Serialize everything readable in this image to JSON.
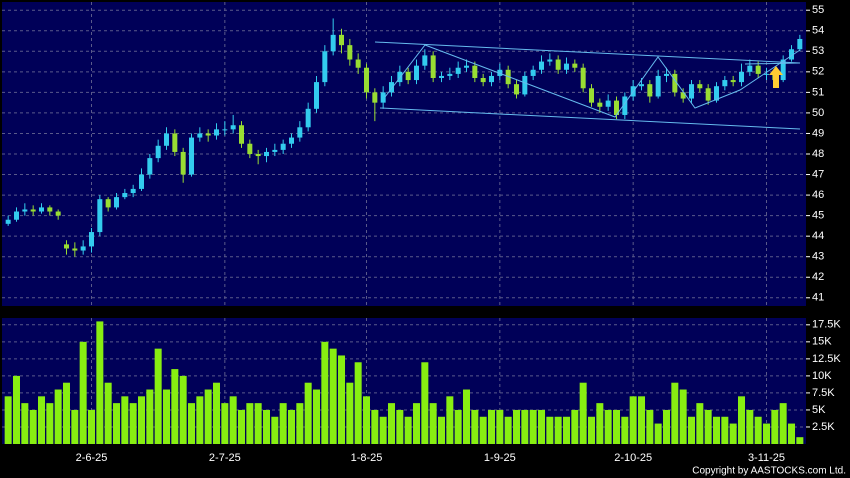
{
  "chart_data": [
    {
      "type": "candlestick",
      "categories": [
        null,
        null,
        null,
        null,
        null,
        null,
        null,
        null,
        null,
        null,
        "2-6-25",
        null,
        null,
        null,
        null,
        null,
        null,
        null,
        null,
        null,
        null,
        null,
        null,
        null,
        null,
        null,
        "2-7-25",
        null,
        null,
        null,
        null,
        null,
        null,
        null,
        null,
        null,
        null,
        null,
        null,
        null,
        null,
        null,
        null,
        "1-8-25",
        null,
        null,
        null,
        null,
        null,
        null,
        null,
        null,
        null,
        null,
        null,
        null,
        null,
        null,
        null,
        "1-9-25",
        null,
        null,
        null,
        null,
        null,
        null,
        null,
        null,
        null,
        null,
        null,
        null,
        null,
        null,
        null,
        "2-10-25",
        null,
        null,
        null,
        null,
        null,
        null,
        null,
        null,
        null,
        null,
        null,
        null,
        null,
        null,
        null,
        "3-11-25",
        null,
        null,
        null,
        null
      ],
      "open": [
        44.6,
        44.8,
        45.2,
        45.3,
        45.2,
        45.4,
        45.2,
        43.6,
        43.4,
        43.3,
        43.5,
        44.2,
        45.8,
        45.4,
        45.9,
        46.1,
        46.3,
        47.0,
        47.8,
        48.4,
        49.0,
        48.1,
        47.0,
        48.8,
        49.0,
        48.9,
        49.2,
        49.2,
        49.4,
        48.5,
        48.0,
        47.9,
        48.1,
        48.2,
        48.5,
        48.8,
        49.3,
        50.2,
        51.5,
        53.0,
        53.8,
        53.3,
        52.6,
        52.2,
        51.0,
        50.5,
        51.0,
        51.5,
        52.0,
        51.6,
        52.3,
        52.8,
        51.7,
        51.8,
        51.9,
        52.2,
        52.3,
        51.7,
        51.5,
        51.8,
        52.1,
        51.4,
        50.9,
        51.8,
        52.1,
        52.5,
        52.6,
        52.1,
        52.4,
        52.2,
        51.2,
        50.5,
        50.3,
        50.6,
        49.9,
        50.8,
        51.3,
        51.4,
        50.8,
        51.8,
        51.9,
        51.0,
        50.7,
        51.4,
        51.2,
        50.6,
        51.3,
        51.6,
        51.5,
        52.0,
        52.3,
        51.9,
        51.9,
        51.6,
        52.6,
        53.1
      ],
      "high": [
        45.0,
        45.4,
        45.6,
        45.5,
        45.6,
        45.5,
        45.3,
        43.8,
        43.7,
        43.8,
        44.4,
        46.0,
        45.9,
        46.1,
        46.3,
        46.5,
        47.3,
        48.0,
        48.7,
        49.3,
        49.2,
        48.3,
        49.0,
        49.3,
        49.2,
        49.5,
        49.6,
        49.9,
        49.6,
        48.7,
        48.2,
        48.3,
        48.5,
        48.7,
        49.0,
        49.6,
        50.5,
        51.8,
        53.3,
        54.6,
        54.1,
        53.6,
        52.9,
        52.4,
        51.2,
        51.3,
        51.8,
        52.3,
        52.2,
        52.6,
        53.1,
        53.0,
        52.0,
        52.2,
        52.5,
        52.6,
        52.5,
        51.9,
        52.0,
        52.4,
        52.3,
        51.6,
        52.0,
        52.3,
        52.8,
        52.9,
        52.8,
        52.7,
        52.6,
        52.4,
        51.4,
        50.7,
        50.9,
        50.8,
        51.0,
        51.6,
        51.7,
        51.6,
        52.1,
        52.2,
        52.1,
        51.2,
        51.6,
        51.6,
        51.4,
        51.5,
        51.8,
        51.8,
        52.4,
        52.6,
        52.5,
        52.2,
        52.1,
        52.8,
        53.3,
        53.8
      ],
      "low": [
        44.5,
        44.7,
        45.0,
        45.0,
        45.1,
        45.0,
        44.8,
        43.1,
        43.0,
        43.1,
        43.2,
        44.0,
        45.2,
        45.3,
        45.8,
        45.9,
        46.2,
        46.8,
        47.6,
        48.2,
        47.9,
        46.6,
        46.9,
        48.6,
        48.6,
        48.7,
        48.9,
        49.0,
        48.3,
        47.8,
        47.5,
        47.6,
        47.9,
        48.0,
        48.3,
        48.6,
        49.1,
        50.0,
        51.3,
        52.8,
        52.9,
        52.3,
        51.9,
        50.7,
        49.6,
        50.2,
        50.8,
        51.3,
        51.4,
        51.4,
        52.1,
        51.5,
        51.5,
        51.6,
        51.7,
        52.0,
        51.5,
        51.3,
        51.3,
        51.6,
        51.2,
        50.7,
        50.8,
        51.6,
        51.9,
        52.3,
        51.9,
        51.9,
        52.0,
        51.0,
        50.3,
        50.0,
        50.1,
        49.7,
        49.7,
        50.6,
        51.1,
        50.5,
        50.7,
        51.5,
        50.8,
        50.5,
        50.5,
        51.0,
        50.4,
        50.5,
        51.1,
        51.3,
        51.3,
        51.8,
        51.7,
        51.6,
        51.4,
        51.5,
        52.5,
        53.0
      ],
      "close": [
        44.8,
        45.2,
        45.3,
        45.2,
        45.4,
        45.2,
        45.0,
        43.4,
        43.3,
        43.5,
        44.2,
        45.8,
        45.4,
        45.9,
        46.1,
        46.3,
        47.0,
        47.8,
        48.4,
        49.0,
        48.1,
        47.0,
        48.8,
        49.0,
        48.9,
        49.2,
        49.2,
        49.4,
        48.5,
        48.0,
        47.9,
        48.1,
        48.2,
        48.5,
        48.8,
        49.3,
        50.2,
        51.5,
        53.0,
        53.8,
        53.3,
        52.6,
        52.2,
        51.0,
        50.5,
        51.0,
        51.5,
        52.0,
        51.6,
        52.3,
        52.8,
        51.7,
        51.8,
        51.9,
        52.2,
        52.3,
        51.7,
        51.5,
        51.8,
        52.1,
        51.4,
        50.9,
        51.8,
        52.1,
        52.5,
        52.6,
        52.1,
        52.4,
        52.2,
        51.2,
        50.5,
        50.3,
        50.6,
        49.9,
        50.8,
        51.3,
        51.4,
        50.8,
        51.8,
        51.9,
        51.0,
        50.7,
        51.4,
        51.2,
        50.6,
        51.3,
        51.6,
        51.5,
        52.0,
        52.3,
        51.9,
        51.9,
        51.6,
        52.6,
        53.1,
        53.6
      ],
      "up_color": "#33ccee",
      "down_color": "#99dd33",
      "ylim": [
        40.6,
        55.4
      ],
      "yticks": [
        41,
        42,
        43,
        44,
        45,
        46,
        47,
        48,
        49,
        50,
        51,
        52,
        53,
        54,
        55
      ],
      "grid": true
    },
    {
      "type": "bar",
      "values": [
        7000,
        10000,
        6000,
        5000,
        7000,
        6000,
        8000,
        9000,
        5000,
        15000,
        5000,
        18000,
        9000,
        6000,
        7000,
        6000,
        7000,
        8000,
        14000,
        8000,
        11000,
        10000,
        6000,
        7000,
        8000,
        9000,
        6000,
        7000,
        5000,
        6000,
        6000,
        5000,
        4000,
        6000,
        5000,
        6000,
        9000,
        8000,
        15000,
        14000,
        13000,
        9000,
        12000,
        7000,
        5000,
        4000,
        6000,
        5000,
        4000,
        6000,
        12000,
        6000,
        4000,
        7000,
        5000,
        8000,
        5000,
        4000,
        5000,
        5000,
        4000,
        5000,
        5000,
        5000,
        5000,
        4000,
        4000,
        4000,
        5000,
        9000,
        4000,
        6000,
        5000,
        5000,
        4000,
        7000,
        7000,
        5000,
        3000,
        5000,
        9000,
        8000,
        4000,
        6000,
        5000,
        4000,
        4000,
        3000,
        7000,
        5000,
        4000,
        3000,
        5000,
        6000,
        3000,
        1000
      ],
      "color": "#88ee11",
      "ylim": [
        0,
        18500
      ],
      "yticks": [
        {
          "value": 2500,
          "label": "2.5K"
        },
        {
          "value": 5000,
          "label": "5K"
        },
        {
          "value": 7500,
          "label": "7.5K"
        },
        {
          "value": 10000,
          "label": "10K"
        },
        {
          "value": 12500,
          "label": "12.5K"
        },
        {
          "value": 15000,
          "label": "15K"
        },
        {
          "value": 17500,
          "label": "17.5K"
        }
      ],
      "grid": true
    }
  ],
  "copyright": "Copyright by AASTOCKS.com Ltd."
}
